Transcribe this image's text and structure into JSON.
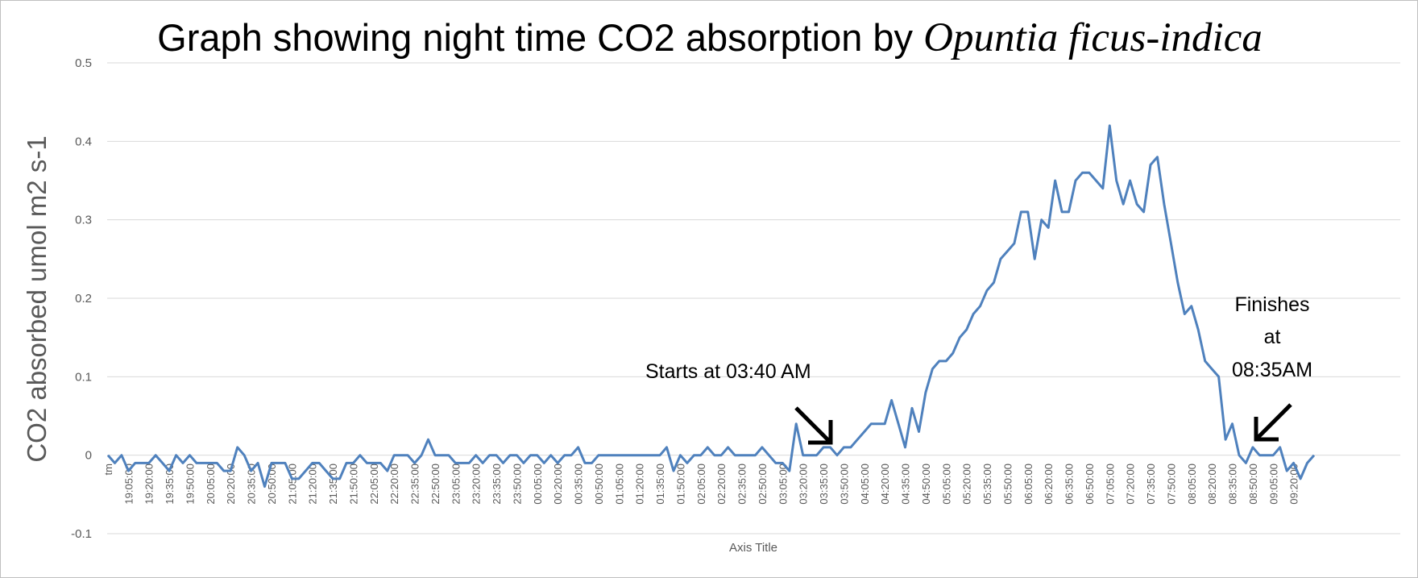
{
  "chart_data": {
    "type": "line",
    "title": "Graph showing night time CO2 absorption by ",
    "title_italic": "Opuntia ficus-indica",
    "xlabel": "Axis Title",
    "ylabel": "CO2 absorbed umol m2 s-1",
    "ylim": [
      -0.1,
      0.5
    ],
    "yticks": [
      "0.5",
      "0.4",
      "0.3",
      "0.2",
      "0.1",
      "0",
      "-0.1"
    ],
    "ytick_values": [
      0.5,
      0.4,
      0.3,
      0.2,
      0.1,
      0,
      -0.1
    ],
    "grid": true,
    "x_interval_minutes": 5,
    "x_tick_every": 3,
    "x_tick_labels": [
      "tm",
      "19:05:00",
      "19:20:00",
      "19:35:00",
      "19:50:00",
      "20:05:00",
      "20:20:00",
      "20:35:00",
      "20:50:00",
      "21:05:00",
      "21:20:00",
      "21:35:00",
      "21:50:00",
      "22:05:00",
      "22:20:00",
      "22:35:00",
      "22:50:00",
      "23:05:00",
      "23:20:00",
      "23:35:00",
      "23:50:00",
      "00:05:00",
      "00:20:00",
      "00:35:00",
      "00:50:00",
      "01:05:00",
      "01:20:00",
      "01:35:00",
      "01:50:00",
      "02:05:00",
      "02:20:00",
      "02:35:00",
      "02:50:00",
      "03:05:00",
      "03:20:00",
      "03:35:00",
      "03:50:00",
      "04:05:00",
      "04:20:00",
      "04:35:00",
      "04:50:00",
      "05:05:00",
      "05:20:00",
      "05:35:00",
      "05:50:00",
      "06:05:00",
      "06:20:00",
      "06:35:00",
      "06:50:00",
      "07:05:00",
      "07:20:00",
      "07:35:00",
      "07:50:00",
      "08:05:00",
      "08:20:00",
      "08:35:00",
      "08:50:00",
      "09:05:00",
      "09:20:00"
    ],
    "series": [
      {
        "name": "CO2 absorbed",
        "color": "#4f81bd",
        "values": [
          0,
          -0.01,
          0,
          -0.02,
          -0.01,
          -0.01,
          -0.01,
          0,
          -0.01,
          -0.02,
          0,
          -0.01,
          0,
          -0.01,
          -0.01,
          -0.01,
          -0.01,
          -0.02,
          -0.02,
          0.01,
          0,
          -0.02,
          -0.01,
          -0.04,
          -0.01,
          -0.01,
          -0.01,
          -0.03,
          -0.03,
          -0.02,
          -0.01,
          -0.01,
          -0.02,
          -0.03,
          -0.03,
          -0.01,
          -0.01,
          0,
          -0.01,
          -0.01,
          -0.01,
          -0.02,
          0,
          0,
          0,
          -0.01,
          0,
          0.02,
          0,
          0,
          0,
          -0.01,
          -0.01,
          -0.01,
          0,
          -0.01,
          0,
          0,
          -0.01,
          0,
          0,
          -0.01,
          0,
          0,
          -0.01,
          0,
          -0.01,
          0,
          0,
          0.01,
          -0.01,
          -0.01,
          0,
          0,
          0,
          0,
          0,
          0,
          0,
          0,
          0,
          0,
          0.01,
          -0.02,
          0,
          -0.01,
          0,
          0,
          0.01,
          0,
          0,
          0.01,
          0,
          0,
          0,
          0,
          0.01,
          0,
          -0.01,
          -0.01,
          -0.02,
          0.04,
          0,
          0,
          0,
          0.01,
          0.01,
          0,
          0.01,
          0.01,
          0.02,
          0.03,
          0.04,
          0.04,
          0.04,
          0.07,
          0.04,
          0.01,
          0.06,
          0.03,
          0.08,
          0.11,
          0.12,
          0.12,
          0.13,
          0.15,
          0.16,
          0.18,
          0.19,
          0.21,
          0.22,
          0.25,
          0.26,
          0.27,
          0.31,
          0.31,
          0.25,
          0.3,
          0.29,
          0.35,
          0.31,
          0.31,
          0.35,
          0.36,
          0.36,
          0.35,
          0.34,
          0.42,
          0.35,
          0.32,
          0.35,
          0.32,
          0.31,
          0.37,
          0.38,
          0.32,
          0.27,
          0.22,
          0.18,
          0.19,
          0.16,
          0.12,
          0.11,
          0.1,
          0.02,
          0.04,
          0,
          -0.01,
          0.01,
          0,
          0,
          0,
          0.01,
          -0.02,
          -0.01,
          -0.03,
          -0.01,
          0
        ]
      }
    ],
    "annotations": [
      {
        "text": "Starts at 03:40 AM",
        "arrow": "down-right"
      },
      {
        "lines": [
          "Finishes",
          "at",
          "08:35AM"
        ],
        "arrow": "down-left"
      }
    ]
  }
}
